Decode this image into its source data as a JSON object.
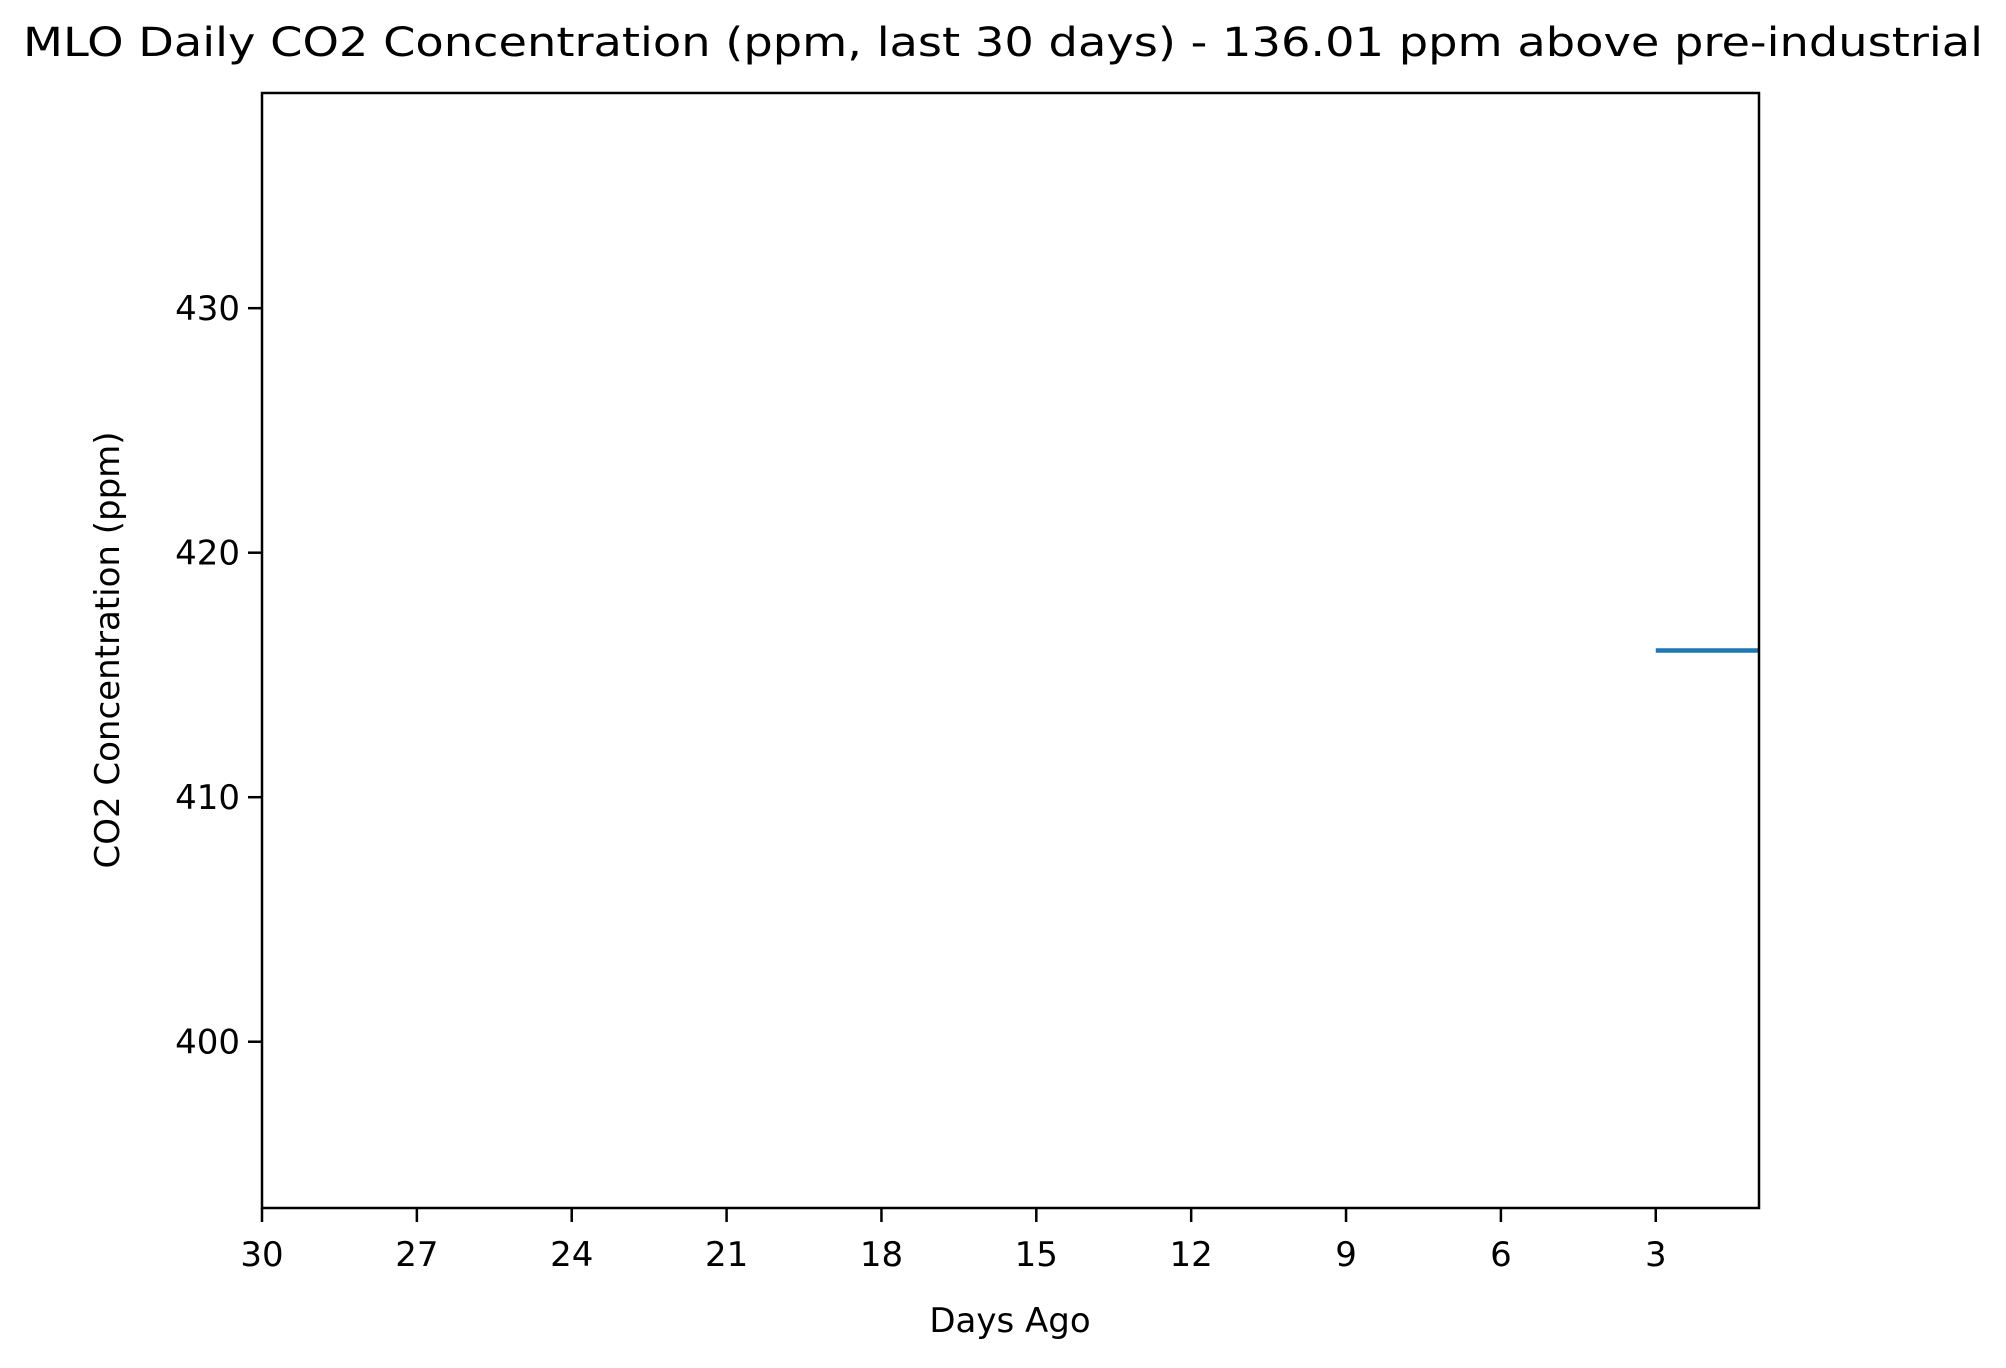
{
  "chart_data": {
    "type": "line",
    "title": "MLO Daily CO2 Concentration (ppm, last 30 days) - 136.01 ppm above pre-industrial",
    "xlabel": "Days Ago",
    "ylabel": "CO2 Concentration (ppm)",
    "x_inverted": true,
    "xlim": [
      30,
      1
    ],
    "ylim": [
      393.2,
      438.8
    ],
    "xticks": [
      30,
      27,
      24,
      21,
      18,
      15,
      12,
      9,
      6,
      3
    ],
    "xtick_labels": [
      "30",
      "27",
      "24",
      "21",
      "18",
      "15",
      "12",
      "9",
      "6",
      "3"
    ],
    "yticks": [
      400,
      410,
      420,
      430
    ],
    "ytick_labels": [
      "400",
      "410",
      "420",
      "430"
    ],
    "grid": false,
    "series": [
      {
        "color": "#1f77b4",
        "x": [
          3,
          1
        ],
        "values": [
          416.0,
          416.0
        ]
      }
    ]
  }
}
